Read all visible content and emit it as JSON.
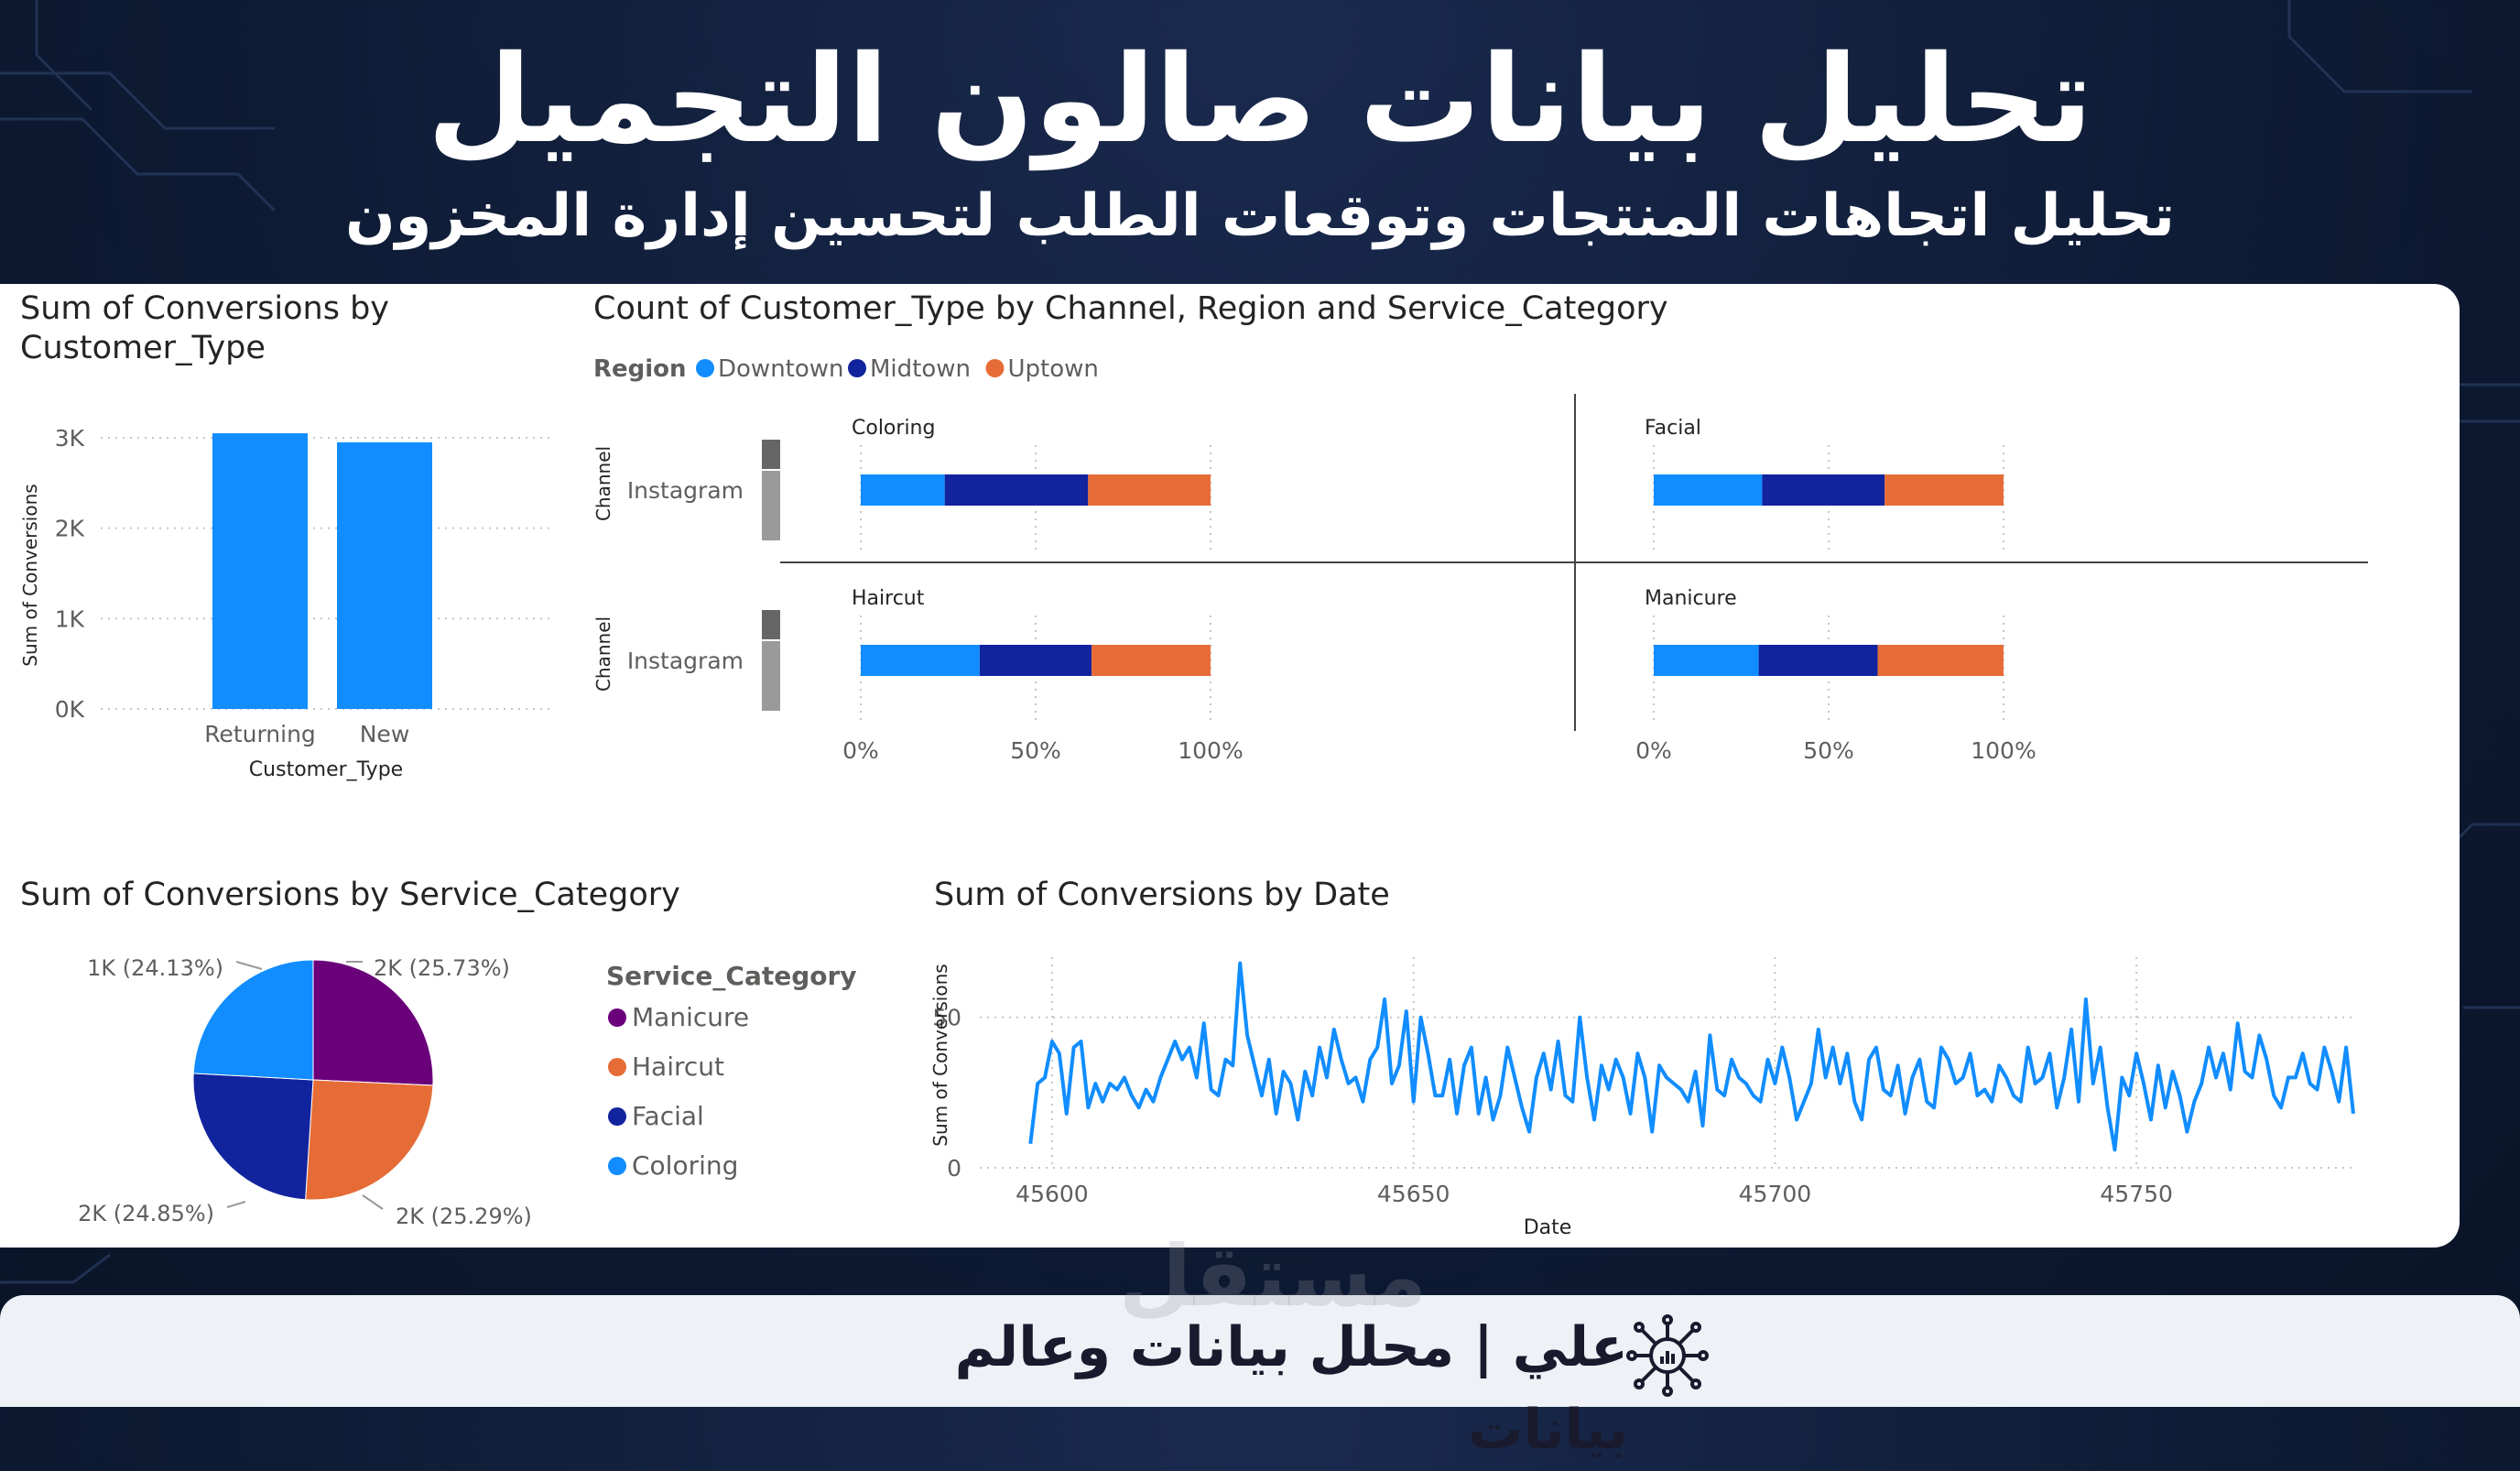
{
  "header": {
    "title": "تحليل بيانات صالون التجميل",
    "subtitle": "تحليل اتجاهات المنتجات وتوقعات الطلب لتحسين إدارة المخزون"
  },
  "footer": {
    "text": "علي | محلل بيانات وعالم بيانات",
    "watermark": "مستقل",
    "logo_icon": "network-chart-icon"
  },
  "chart_data": [
    {
      "type": "bar",
      "title": "Sum of Conversions by Customer_Type",
      "xlabel": "Customer_Type",
      "ylabel": "Sum of Conversions",
      "categories": [
        "Returning",
        "New"
      ],
      "values": [
        3050,
        2950
      ],
      "ylim": [
        0,
        3000
      ],
      "yticks": [
        "0K",
        "1K",
        "2K",
        "3K"
      ],
      "color": "#118dff",
      "grid": true
    },
    {
      "type": "bar",
      "title": "Count of Customer_Type by Channel, Region and Service_Category",
      "legend_title": "Region",
      "legend": [
        {
          "name": "Downtown",
          "color": "#118dff"
        },
        {
          "name": "Midtown",
          "color": "#12239e"
        },
        {
          "name": "Uptown",
          "color": "#e66c37"
        }
      ],
      "ylabel": "Channel",
      "channel": "Instagram",
      "xticks": [
        "0%",
        "50%",
        "100%"
      ],
      "facets": [
        {
          "name": "Coloring",
          "values": [
            24,
            41,
            35
          ]
        },
        {
          "name": "Facial",
          "values": [
            31,
            35,
            34
          ]
        },
        {
          "name": "Haircut",
          "values": [
            34,
            32,
            34
          ]
        },
        {
          "name": "Manicure",
          "values": [
            30,
            34,
            36
          ]
        }
      ]
    },
    {
      "type": "pie",
      "title": "Sum of Conversions by Service_Category",
      "legend_title": "Service_Category",
      "slices": [
        {
          "name": "Manicure",
          "percent": 25.73,
          "label": "2K (25.73%)",
          "color": "#6b007b"
        },
        {
          "name": "Haircut",
          "percent": 25.29,
          "label": "2K (25.29%)",
          "color": "#e66c37"
        },
        {
          "name": "Facial",
          "percent": 24.85,
          "label": "2K (24.85%)",
          "color": "#12239e"
        },
        {
          "name": "Coloring",
          "percent": 24.13,
          "label": "1K (24.13%)",
          "color": "#118dff"
        }
      ]
    },
    {
      "type": "line",
      "title": "Sum of Conversions by Date",
      "xlabel": "Date",
      "ylabel": "Sum of Conversions",
      "xlim": [
        45590,
        45780
      ],
      "ylim": [
        0,
        70
      ],
      "xticks": [
        45600,
        45650,
        45700,
        45750
      ],
      "yticks": [
        0,
        50
      ],
      "color": "#118dff",
      "x_start": 45597,
      "y": [
        8,
        28,
        30,
        42,
        38,
        18,
        40,
        42,
        20,
        28,
        22,
        28,
        26,
        30,
        24,
        20,
        26,
        22,
        30,
        36,
        42,
        36,
        40,
        30,
        48,
        26,
        24,
        36,
        34,
        68,
        44,
        34,
        24,
        36,
        18,
        32,
        28,
        16,
        32,
        24,
        40,
        30,
        46,
        36,
        28,
        30,
        22,
        36,
        40,
        56,
        28,
        34,
        52,
        22,
        50,
        38,
        24,
        24,
        36,
        18,
        34,
        40,
        18,
        30,
        16,
        24,
        40,
        30,
        20,
        12,
        30,
        38,
        26,
        42,
        24,
        22,
        50,
        30,
        16,
        34,
        26,
        36,
        30,
        18,
        38,
        30,
        12,
        34,
        30,
        28,
        26,
        22,
        32,
        14,
        44,
        26,
        24,
        36,
        30,
        28,
        24,
        22,
        36,
        28,
        40,
        30,
        16,
        22,
        28,
        46,
        30,
        40,
        28,
        38,
        22,
        16,
        36,
        40,
        26,
        24,
        34,
        18,
        30,
        36,
        22,
        20,
        40,
        36,
        28,
        30,
        38,
        24,
        26,
        22,
        34,
        30,
        24,
        22,
        40,
        28,
        30,
        38,
        20,
        30,
        46,
        22,
        56,
        28,
        40,
        20,
        6,
        30,
        24,
        38,
        28,
        16,
        34,
        20,
        32,
        24,
        12,
        22,
        28,
        40,
        30,
        38,
        26,
        48,
        32,
        30,
        44,
        36,
        24,
        20,
        30,
        30,
        38,
        28,
        26,
        40,
        32,
        22,
        40,
        18
      ]
    }
  ]
}
